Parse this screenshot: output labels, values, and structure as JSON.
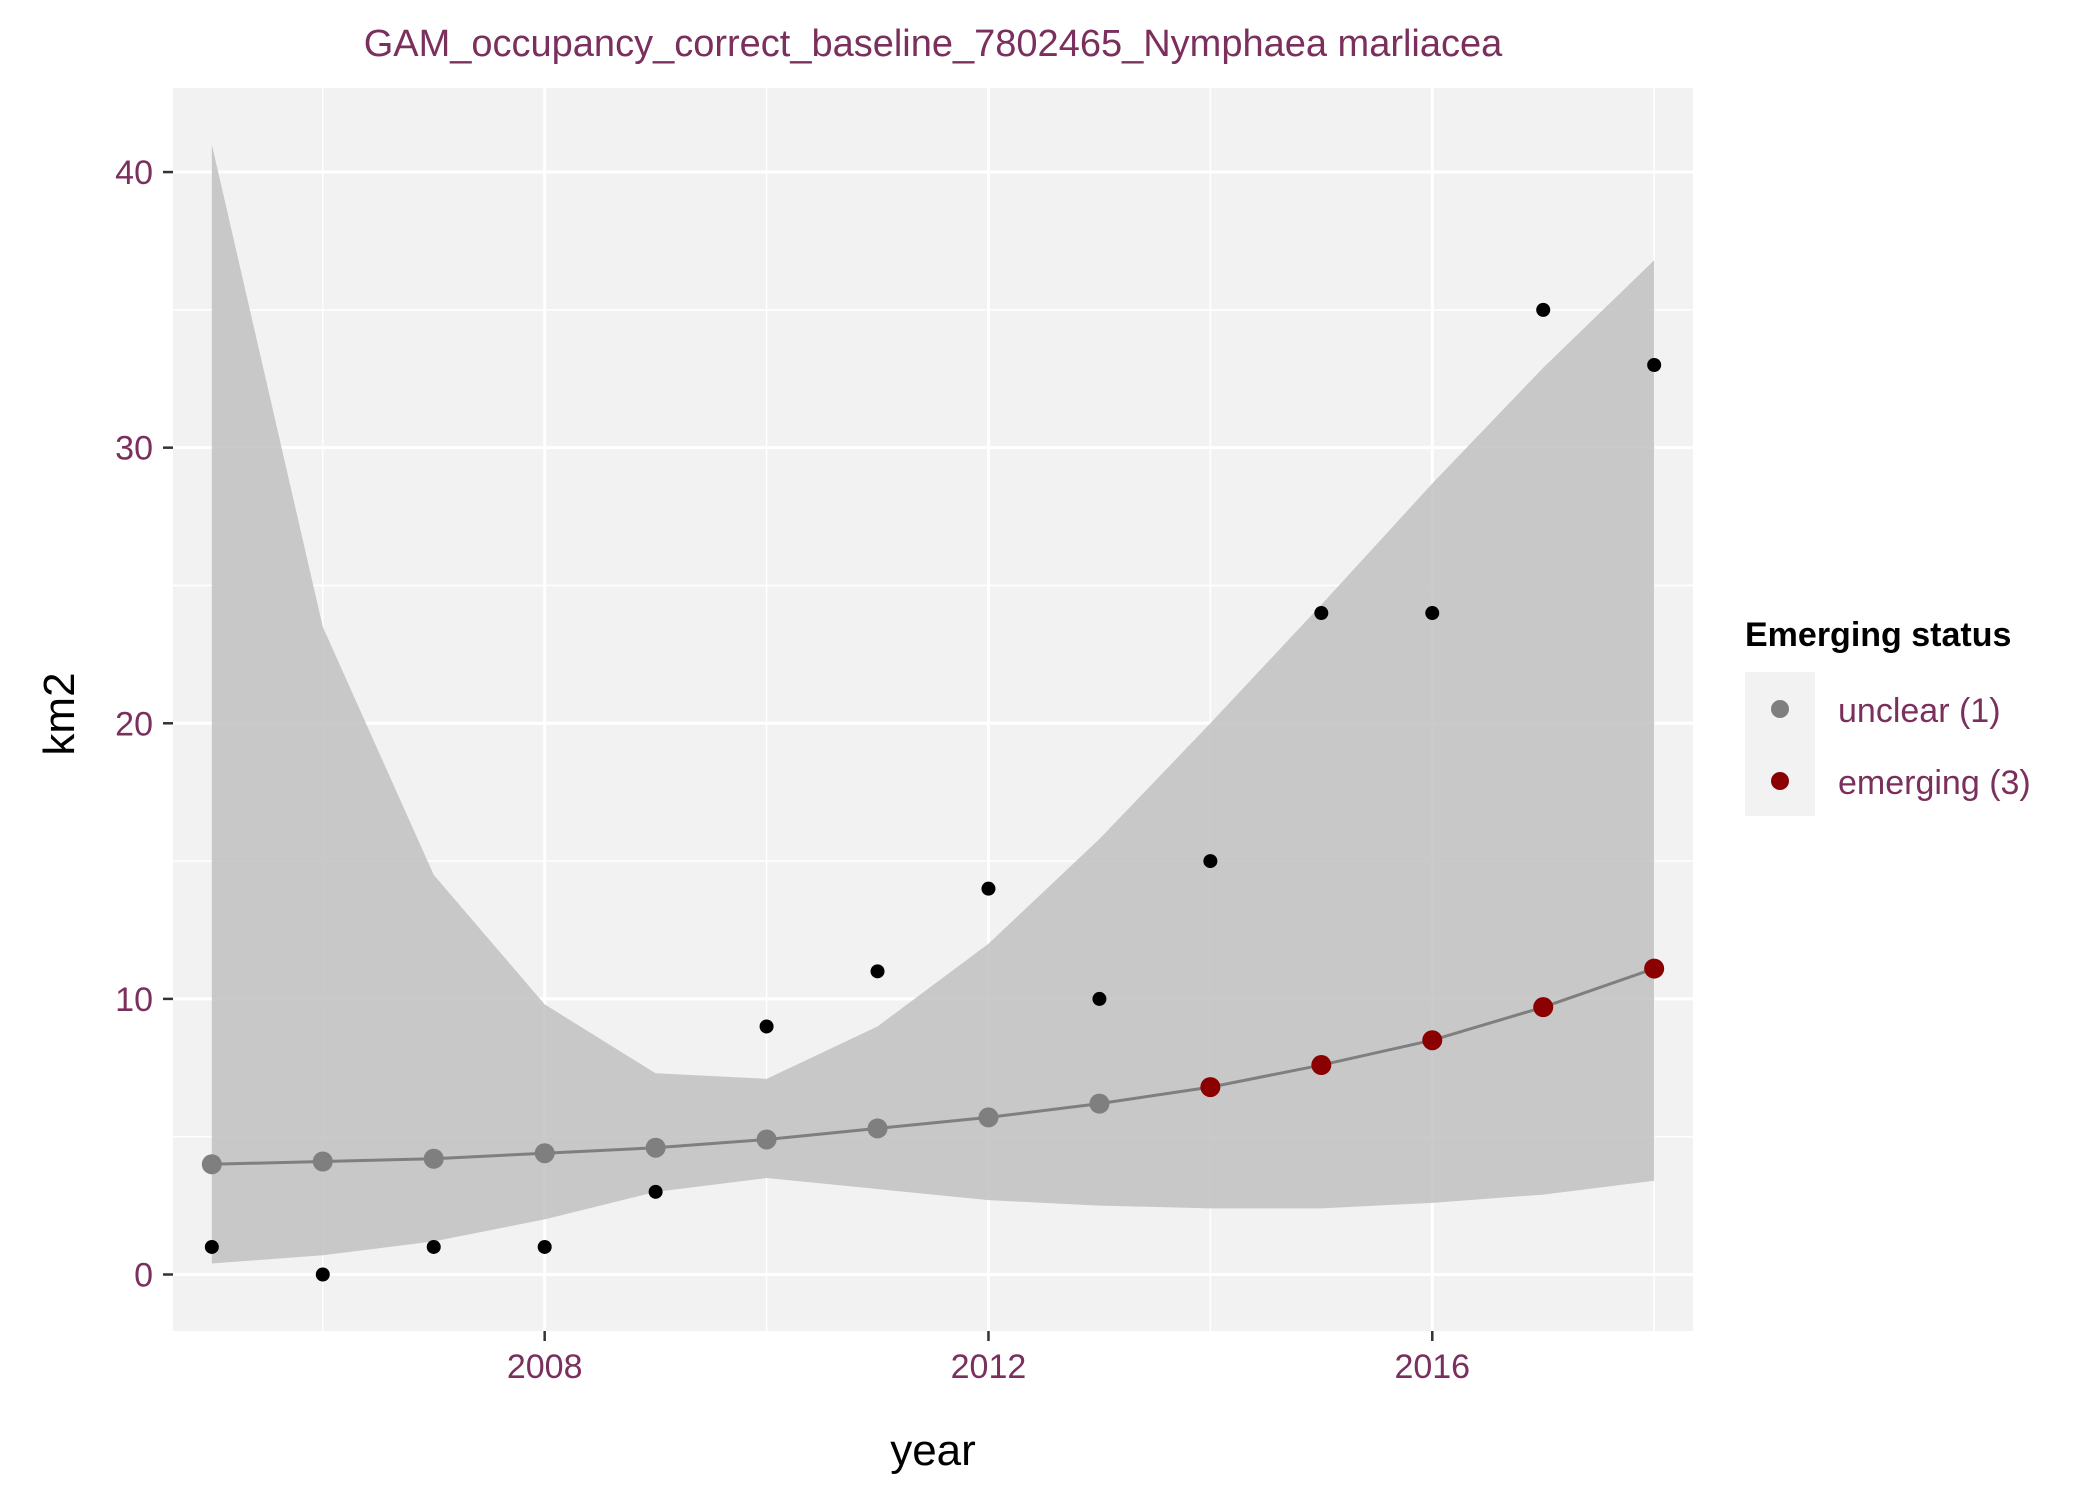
{
  "chart_data": {
    "type": "scatter",
    "title": "GAM_occupancy_correct_baseline_7802465_Nymphaea marliacea",
    "xlabel": "year",
    "ylabel": "km2",
    "xlim": [
      2004.65,
      2018.35
    ],
    "ylim": [
      -2.05,
      43.05
    ],
    "x_ticks": [
      2008,
      2012,
      2016
    ],
    "x_tick_labels": [
      "2008",
      "2012",
      "2016"
    ],
    "y_ticks": [
      0,
      10,
      20,
      30,
      40
    ],
    "y_tick_labels": [
      "0",
      "10",
      "20",
      "30",
      "40"
    ],
    "grid": true,
    "legend_position": "right",
    "title_color": "#7a2f5c",
    "tick_label_color": "#7a2f5c",
    "panel_background": "#f2f2f2",
    "gridline_color": "#ffffff",
    "observed": {
      "color": "#000000",
      "points": [
        {
          "x": 2005,
          "y": 1
        },
        {
          "x": 2006,
          "y": 0
        },
        {
          "x": 2007,
          "y": 1
        },
        {
          "x": 2008,
          "y": 1
        },
        {
          "x": 2009,
          "y": 3
        },
        {
          "x": 2010,
          "y": 9
        },
        {
          "x": 2011,
          "y": 11
        },
        {
          "x": 2012,
          "y": 14
        },
        {
          "x": 2013,
          "y": 10
        },
        {
          "x": 2014,
          "y": 15
        },
        {
          "x": 2015,
          "y": 24
        },
        {
          "x": 2016,
          "y": 24
        },
        {
          "x": 2017,
          "y": 35
        },
        {
          "x": 2018,
          "y": 33
        }
      ]
    },
    "fit": {
      "line_color": "#7f7f7f",
      "ribbon_color": "#bdbdbd",
      "points": [
        {
          "x": 2005,
          "y": 4.0,
          "lower": 0.4,
          "upper": 41.0,
          "status": "unclear (1)"
        },
        {
          "x": 2006,
          "y": 4.1,
          "lower": 0.7,
          "upper": 23.5,
          "status": "unclear (1)"
        },
        {
          "x": 2007,
          "y": 4.2,
          "lower": 1.2,
          "upper": 14.5,
          "status": "unclear (1)"
        },
        {
          "x": 2008,
          "y": 4.4,
          "lower": 2.0,
          "upper": 9.8,
          "status": "unclear (1)"
        },
        {
          "x": 2009,
          "y": 4.6,
          "lower": 3.0,
          "upper": 7.3,
          "status": "unclear (1)"
        },
        {
          "x": 2010,
          "y": 4.9,
          "lower": 3.5,
          "upper": 7.1,
          "status": "unclear (1)"
        },
        {
          "x": 2011,
          "y": 5.3,
          "lower": 3.1,
          "upper": 9.0,
          "status": "unclear (1)"
        },
        {
          "x": 2012,
          "y": 5.7,
          "lower": 2.7,
          "upper": 12.0,
          "status": "unclear (1)"
        },
        {
          "x": 2013,
          "y": 6.2,
          "lower": 2.5,
          "upper": 15.8,
          "status": "unclear (1)"
        },
        {
          "x": 2014,
          "y": 6.8,
          "lower": 2.4,
          "upper": 20.0,
          "status": "emerging (3)"
        },
        {
          "x": 2015,
          "y": 7.6,
          "lower": 2.4,
          "upper": 24.3,
          "status": "emerging (3)"
        },
        {
          "x": 2016,
          "y": 8.5,
          "lower": 2.6,
          "upper": 28.7,
          "status": "emerging (3)"
        },
        {
          "x": 2017,
          "y": 9.7,
          "lower": 2.9,
          "upper": 32.9,
          "status": "emerging (3)"
        },
        {
          "x": 2018,
          "y": 11.1,
          "lower": 3.4,
          "upper": 36.8,
          "status": "emerging (3)"
        }
      ]
    },
    "legend": {
      "title": "Emerging status",
      "entries": [
        {
          "label": "unclear (1)",
          "color": "#7f7f7f"
        },
        {
          "label": "emerging (3)",
          "color": "#8b0000"
        }
      ]
    }
  }
}
